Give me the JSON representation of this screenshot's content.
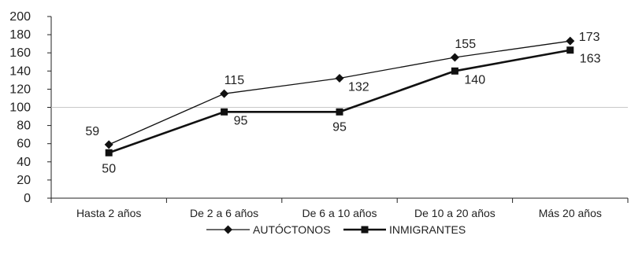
{
  "chart_data": {
    "type": "line",
    "categories": [
      "Hasta 2 años",
      "De 2 a 6 años",
      "De 6 a 10 años",
      "De 10 a 20 años",
      "Más 20 años"
    ],
    "yticks": [
      0,
      20,
      40,
      60,
      80,
      100,
      120,
      140,
      160,
      180,
      200
    ],
    "ylim": [
      0,
      200
    ],
    "reference_line": 100,
    "series": [
      {
        "name": "AUTÓCTONOS",
        "values": [
          59,
          115,
          132,
          155,
          173
        ],
        "labels": [
          "59",
          "115",
          "132",
          "155",
          "173"
        ],
        "marker": "diamond",
        "color": "#111111"
      },
      {
        "name": "INMIGRANTES",
        "values": [
          50,
          95,
          95,
          140,
          163
        ],
        "labels": [
          "50",
          "95",
          "95",
          "140",
          "163"
        ],
        "marker": "square",
        "color": "#111111"
      }
    ],
    "legend_position": "bottom-center",
    "grid": false
  }
}
